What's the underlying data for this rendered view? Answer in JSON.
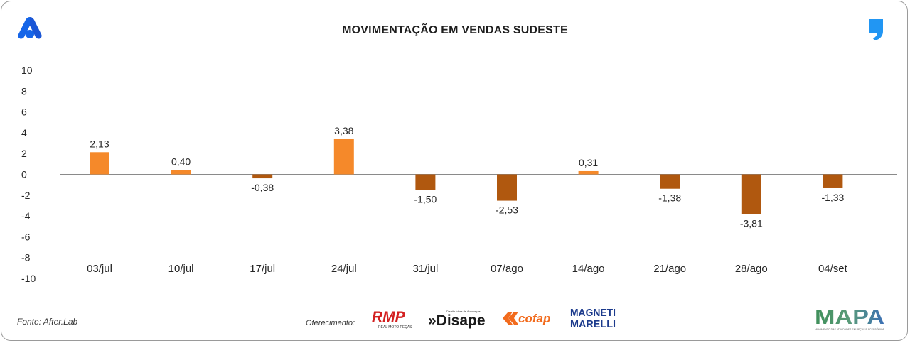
{
  "header": {
    "title": "MOVIMENTAÇÃO EM VENDAS SUDESTE"
  },
  "chart_data": {
    "type": "bar",
    "title": "MOVIMENTAÇÃO EM VENDAS SUDESTE",
    "xlabel": "",
    "ylabel": "",
    "ylim": [
      -10,
      10
    ],
    "yticks": [
      "10",
      "8",
      "6",
      "4",
      "2",
      "0",
      "-2",
      "-4",
      "-6",
      "-8",
      "-10"
    ],
    "categories": [
      "03/jul",
      "10/jul",
      "17/jul",
      "24/jul",
      "31/jul",
      "07/ago",
      "14/ago",
      "21/ago",
      "28/ago",
      "04/set"
    ],
    "values": [
      2.13,
      0.4,
      -0.38,
      3.38,
      -1.5,
      -2.53,
      0.31,
      -1.38,
      -3.81,
      -1.33
    ],
    "labels": [
      "2,13",
      "0,40",
      "-0,38",
      "3,38",
      "-1,50",
      "-2,53",
      "0,31",
      "-1,38",
      "-3,81",
      "-1,33"
    ],
    "positive_color": "#f5892a",
    "negative_color": "#b0580f",
    "grid": false
  },
  "footer": {
    "source": "Fonte: After.Lab",
    "offer_label": "Oferecimento:",
    "sponsors": [
      {
        "name": "RMP",
        "sub": "REAL MOTO PEÇAS"
      },
      {
        "name": "»Disape",
        "sub": "Distribuidora de Autopeças"
      },
      {
        "name": "cofap"
      },
      {
        "name": "MAGNETI",
        "line2": "MARELLI"
      }
    ],
    "mapa": {
      "name": "MAPA",
      "tagline": "MOVIMENTO DAS ATIVIDADES EM PEÇAS E ACESSÓRIOS"
    }
  },
  "colors": {
    "brand_blue": "#1565e8",
    "quote_blue": "#2196f3",
    "axis": "#8a8a8a"
  }
}
